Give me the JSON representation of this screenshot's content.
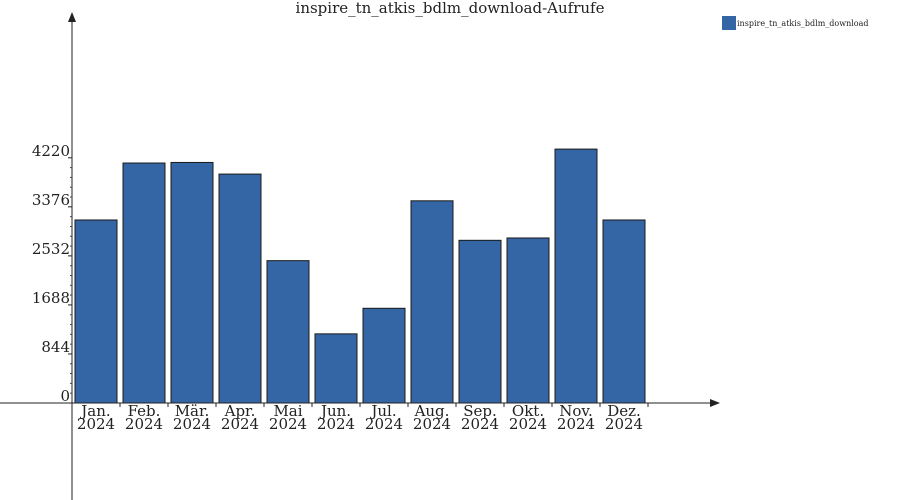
{
  "chart_data": {
    "type": "bar",
    "title": "inspire_tn_atkis_bdlm_download-Aufrufe",
    "categories": [
      [
        "Jan.",
        "2024"
      ],
      [
        "Feb.",
        "2024"
      ],
      [
        "Mär.",
        "2024"
      ],
      [
        "Apr.",
        "2024"
      ],
      [
        "Mai",
        "2024"
      ],
      [
        "Jun.",
        "2024"
      ],
      [
        "Jul.",
        "2024"
      ],
      [
        "Aug.",
        "2024"
      ],
      [
        "Sep.",
        "2024"
      ],
      [
        "Okt.",
        "2024"
      ],
      [
        "Nov.",
        "2024"
      ],
      [
        "Dez.",
        "2024"
      ]
    ],
    "series": [
      {
        "name": "inspire_tn_atkis_bdlm_download",
        "color": "#3465a4",
        "values": [
          3150,
          4130,
          4140,
          3940,
          2450,
          1190,
          1630,
          3480,
          2800,
          2840,
          4370,
          3150
        ]
      }
    ],
    "yticks": [
      0,
      844,
      1688,
      2532,
      3376,
      4220
    ],
    "ylim": [
      0,
      5800
    ],
    "legend_position": "top-right",
    "grid": false
  }
}
